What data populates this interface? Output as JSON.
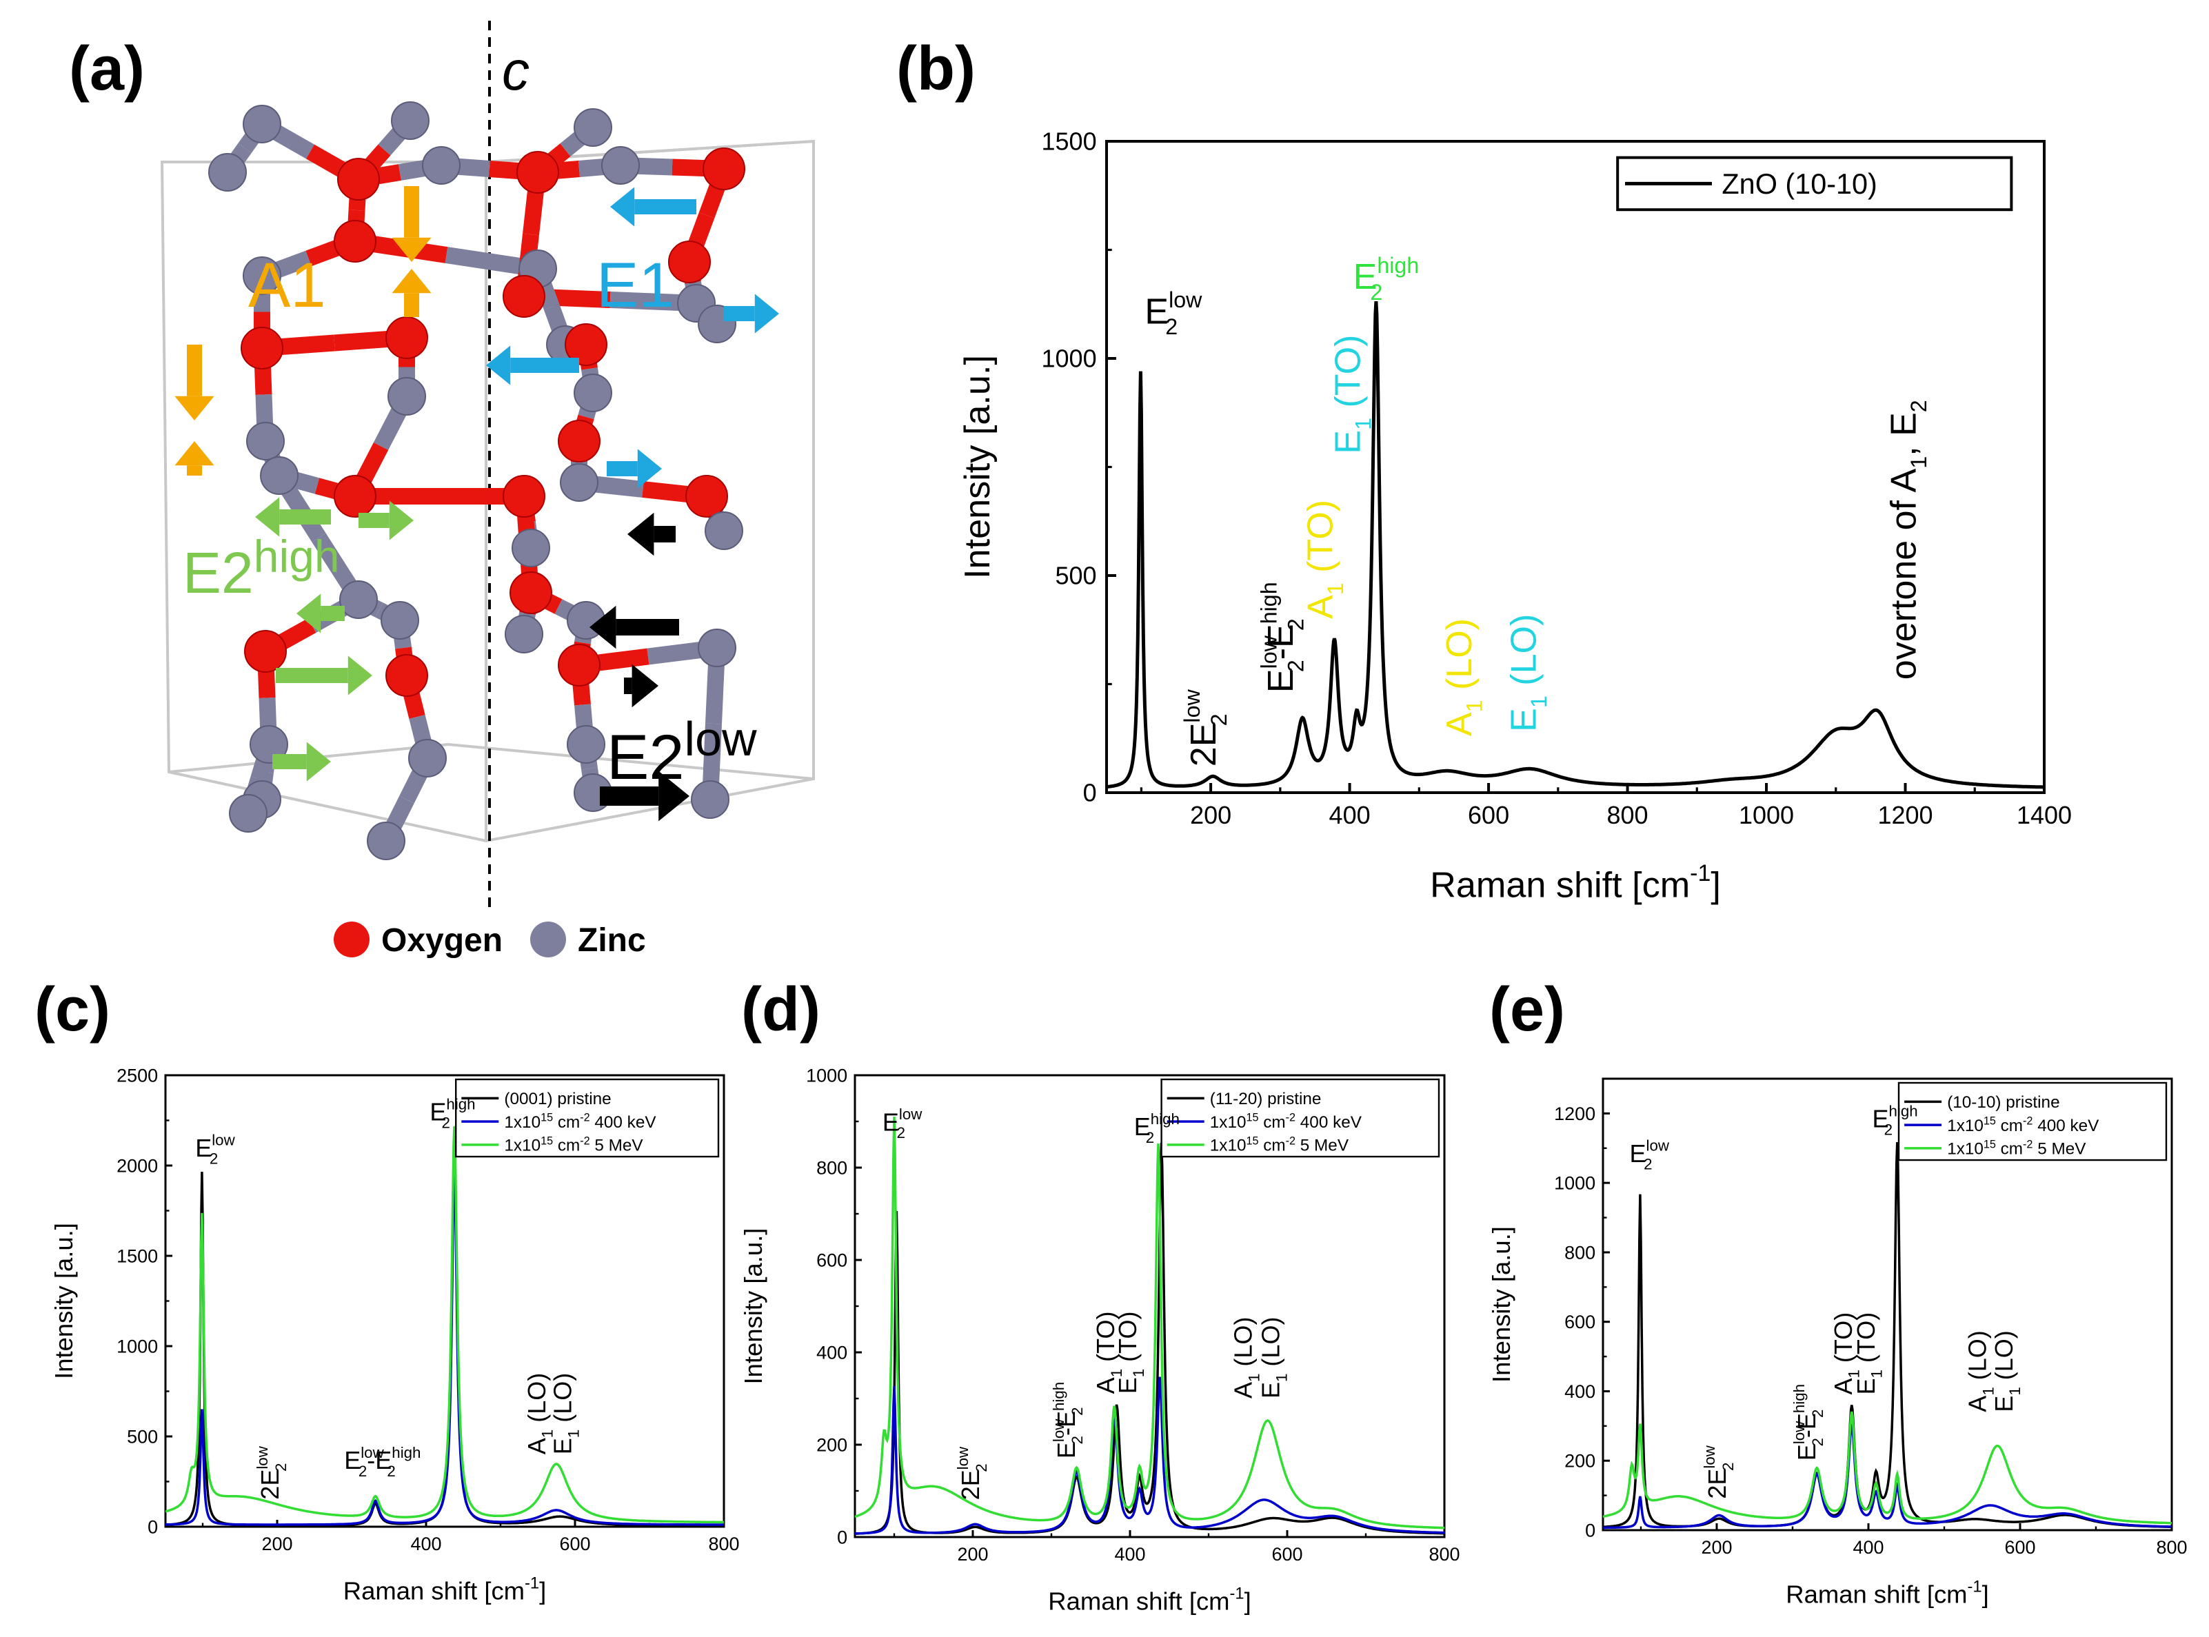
{
  "panel_labels": {
    "a": "(a)",
    "b": "(b)",
    "c": "(c)",
    "d": "(d)",
    "e": "(e)"
  },
  "structure": {
    "axis_label": "c",
    "modes": {
      "a1": "A1",
      "e1": "E1",
      "e2h_base": "E2",
      "e2h_sup": "high",
      "e2l_base": "E2",
      "e2l_sup": "low"
    },
    "legend": {
      "oxygen": "Oxygen",
      "zinc": "Zinc"
    },
    "colors": {
      "oxygen": "#e8150f",
      "zinc": "#7d7f9c",
      "a1": "#f5a800",
      "e1": "#1fa8e0",
      "e2h": "#7ec850",
      "e2l": "#000000"
    }
  },
  "chart_data": [
    {
      "id": "b",
      "type": "line",
      "title": "",
      "xlabel": "Raman shift [cm",
      "xlabel_sup": "-1",
      "xlabel_end": "]",
      "ylabel": "Intensity [a.u.]",
      "xlim": [
        50,
        1400
      ],
      "ylim": [
        0,
        1500
      ],
      "xticks": [
        200,
        400,
        600,
        800,
        1000,
        1200,
        1400
      ],
      "yticks": [
        0,
        500,
        1000,
        1500
      ],
      "legend": [
        "ZnO (10-10)"
      ],
      "series": [
        {
          "name": "ZnO (10-10)",
          "color": "#000000",
          "peaks": [
            [
              99,
              960,
              3
            ],
            [
              203,
              25,
              14
            ],
            [
              332,
              150,
              11
            ],
            [
              378,
              320,
              7
            ],
            [
              410,
              110,
              6
            ],
            [
              438,
              1105,
              6
            ],
            [
              540,
              30,
              45
            ],
            [
              660,
              40,
              50
            ],
            [
              950,
              10,
              60
            ],
            [
              1100,
              110,
              45
            ],
            [
              1160,
              140,
              28
            ]
          ],
          "baseline": 8
        }
      ],
      "annotations": [
        {
          "id": "E2low",
          "base": "E",
          "sub": "2",
          "sup": "low",
          "x": 105,
          "y": 1080,
          "rot": 0,
          "color": "#000000"
        },
        {
          "id": "2E2low",
          "base": "2E",
          "sub": "2",
          "sup": "low",
          "x": 207,
          "y": 60,
          "rot": -90,
          "color": "#000000"
        },
        {
          "id": "diff",
          "base": "E",
          "sub": "2",
          "sup": "low",
          "extra": "-E",
          "extra_sub": "2",
          "extra_sup": "high",
          "x": 318,
          "y": 230,
          "rot": -90,
          "color": "#000000"
        },
        {
          "id": "A1TO",
          "base": "A",
          "sub": "1",
          "text": " (TO)",
          "x": 375,
          "y": 400,
          "rot": -90,
          "color": "#f2e600"
        },
        {
          "id": "E1TO",
          "base": "E",
          "sub": "1",
          "text": " (TO)",
          "x": 415,
          "y": 780,
          "rot": -90,
          "color": "#22d3e0"
        },
        {
          "id": "E2high",
          "base": "E",
          "sub": "2",
          "sup": "high",
          "x": 405,
          "y": 1160,
          "rot": 0,
          "color": "#2fe33d"
        },
        {
          "id": "A1LO",
          "base": "A",
          "sub": "1",
          "text": " (LO)",
          "x": 575,
          "y": 130,
          "rot": -90,
          "color": "#f2e600"
        },
        {
          "id": "E1LO",
          "base": "E",
          "sub": "1",
          "text": " (LO)",
          "x": 668,
          "y": 140,
          "rot": -90,
          "color": "#22d3e0"
        },
        {
          "id": "overtone",
          "text": "overtone of A",
          "sub": "1",
          "extra": ", E",
          "extra_sub": "2",
          "x": 1215,
          "y": 260,
          "rot": -90,
          "color": "#000000"
        }
      ]
    },
    {
      "id": "c",
      "type": "line",
      "xlabel": "Raman shift [cm",
      "xlabel_sup": "-1",
      "xlabel_end": "]",
      "ylabel": "Intensity [a.u.]",
      "xlim": [
        50,
        800
      ],
      "ylim": [
        0,
        2500
      ],
      "xticks": [
        200,
        400,
        600,
        800
      ],
      "yticks": [
        0,
        500,
        1000,
        1500,
        2000,
        2500
      ],
      "legend_entries": [
        {
          "text": "(0001) pristine",
          "color": "#000000"
        },
        {
          "text": "1x10",
          "sup": "15",
          "text2": " cm",
          "sup2": "-2",
          "text3": " 400 keV",
          "color": "#0000cc"
        },
        {
          "text": "1x10",
          "sup": "15",
          "text2": " cm",
          "sup2": "-2",
          "text3": " 5 MeV",
          "color": "#33dd33"
        }
      ],
      "series": [
        {
          "name": "(0001) pristine",
          "color": "#000000",
          "peaks": [
            [
              99,
              1960,
              2.5
            ],
            [
              332,
              120,
              6
            ],
            [
              438,
              2150,
              4
            ],
            [
              580,
              50,
              30
            ]
          ],
          "baseline": 5
        },
        {
          "name": "400 keV",
          "color": "#0000cc",
          "peaks": [
            [
              99,
              640,
              2.5
            ],
            [
              332,
              130,
              6
            ],
            [
              438,
              2000,
              4
            ],
            [
              575,
              80,
              25
            ]
          ],
          "baseline": 10
        },
        {
          "name": "5 MeV",
          "color": "#33dd33",
          "peaks": [
            [
              85,
              150,
              5
            ],
            [
              99,
              1600,
              3
            ],
            [
              150,
              140,
              80
            ],
            [
              332,
              120,
              7
            ],
            [
              438,
              2180,
              4.5
            ],
            [
              575,
              320,
              20
            ]
          ],
          "baseline": 20
        }
      ],
      "annotations": [
        {
          "base": "E",
          "sub": "2",
          "sup": "low",
          "x": 90,
          "y": 2050,
          "rot": 0,
          "color": "#000000"
        },
        {
          "base": "2E",
          "sub": "2",
          "sup": "low",
          "x": 202,
          "y": 150,
          "rot": -90,
          "color": "#000000"
        },
        {
          "base": "E",
          "sub": "2",
          "sup": "low",
          "extra": "-E",
          "extra_sub": "2",
          "extra_sup": "high",
          "x": 290,
          "y": 320,
          "rot": 0,
          "color": "#000000"
        },
        {
          "base": "E",
          "sub": "2",
          "sup": "high",
          "x": 405,
          "y": 2250,
          "rot": 0,
          "color": "#000000"
        },
        {
          "base": "A",
          "sub": "1",
          "text": " (LO)",
          "x": 560,
          "y": 400,
          "rot": -90,
          "color": "#000000"
        },
        {
          "base": "E",
          "sub": "1",
          "text": " (LO)",
          "x": 595,
          "y": 400,
          "rot": -90,
          "color": "#000000"
        }
      ]
    },
    {
      "id": "d",
      "type": "line",
      "xlabel": "Raman shift [cm",
      "xlabel_sup": "-1",
      "xlabel_end": "]",
      "ylabel": "Intensity [a.u.]",
      "xlim": [
        50,
        800
      ],
      "ylim": [
        0,
        1000
      ],
      "xticks": [
        200,
        400,
        600,
        800
      ],
      "yticks": [
        0,
        200,
        400,
        600,
        800,
        1000
      ],
      "legend_entries": [
        {
          "text": "(11-20) pristine",
          "color": "#000000"
        },
        {
          "text": "1x10",
          "sup": "15",
          "text2": " cm",
          "sup2": "-2",
          "text3": " 400 keV",
          "color": "#0000cc"
        },
        {
          "text": "1x10",
          "sup": "15",
          "text2": " cm",
          "sup2": "-2",
          "text3": " 5 MeV",
          "color": "#33dd33"
        }
      ],
      "series": [
        {
          "name": "(11-20) pristine",
          "color": "#000000",
          "peaks": [
            [
              103,
              700,
              2.5
            ],
            [
              203,
              15,
              15
            ],
            [
              332,
              120,
              8
            ],
            [
              383,
              270,
              5
            ],
            [
              412,
              100,
              5
            ],
            [
              440,
              840,
              4
            ],
            [
              580,
              30,
              40
            ],
            [
              660,
              30,
              35
            ]
          ],
          "baseline": 5
        },
        {
          "name": "400 keV",
          "color": "#0000cc",
          "peaks": [
            [
              100,
              320,
              2.5
            ],
            [
              203,
              20,
              15
            ],
            [
              332,
              130,
              8
            ],
            [
              380,
              250,
              5
            ],
            [
              412,
              80,
              5
            ],
            [
              438,
              330,
              4
            ],
            [
              570,
              70,
              35
            ],
            [
              660,
              30,
              35
            ]
          ],
          "baseline": 6
        },
        {
          "name": "5 MeV",
          "color": "#33dd33",
          "peaks": [
            [
              87,
              130,
              4
            ],
            [
              100,
              830,
              3
            ],
            [
              150,
              90,
              60
            ],
            [
              332,
              120,
              8
            ],
            [
              380,
              250,
              5
            ],
            [
              412,
              100,
              5
            ],
            [
              436,
              820,
              4
            ],
            [
              575,
              230,
              22
            ],
            [
              660,
              30,
              35
            ]
          ],
          "baseline": 15
        }
      ],
      "annotations": [
        {
          "base": "E",
          "sub": "2",
          "sup": "low",
          "x": 85,
          "y": 880,
          "rot": 0,
          "color": "#000000"
        },
        {
          "base": "2E",
          "sub": "2",
          "sup": "low",
          "x": 208,
          "y": 80,
          "rot": -90,
          "color": "#000000"
        },
        {
          "base": "E",
          "sub": "2",
          "sup": "low",
          "extra": "-E",
          "extra_sub": "2",
          "extra_sup": "high",
          "x": 330,
          "y": 170,
          "rot": -90,
          "color": "#000000"
        },
        {
          "base": "A",
          "sub": "1",
          "text": " (TO)",
          "x": 380,
          "y": 310,
          "rot": -90,
          "color": "#000000"
        },
        {
          "base": "E",
          "sub": "1",
          "text": " (TO)",
          "x": 408,
          "y": 310,
          "rot": -90,
          "color": "#000000"
        },
        {
          "base": "E",
          "sub": "2",
          "sup": "high",
          "x": 405,
          "y": 870,
          "rot": 0,
          "color": "#000000"
        },
        {
          "base": "A",
          "sub": "1",
          "text": " (LO)",
          "x": 555,
          "y": 300,
          "rot": -90,
          "color": "#000000"
        },
        {
          "base": "E",
          "sub": "1",
          "text": " (LO)",
          "x": 590,
          "y": 300,
          "rot": -90,
          "color": "#000000"
        }
      ]
    },
    {
      "id": "e",
      "type": "line",
      "xlabel": "Raman shift [cm",
      "xlabel_sup": "-1",
      "xlabel_end": "]",
      "ylabel": "Intensity [a.u.]",
      "xlim": [
        50,
        800
      ],
      "ylim": [
        0,
        1300
      ],
      "xticks": [
        200,
        400,
        600,
        800
      ],
      "yticks": [
        0,
        200,
        400,
        600,
        800,
        1000,
        1200
      ],
      "legend_entries": [
        {
          "text": "(10-10) pristine",
          "color": "#000000"
        },
        {
          "text": "1x10",
          "sup": "15",
          "text2": " cm",
          "sup2": "-2",
          "text3": " 400 keV",
          "color": "#0000cc"
        },
        {
          "text": "1x10",
          "sup": "15",
          "text2": " cm",
          "sup2": "-2",
          "text3": " 5 MeV",
          "color": "#33dd33"
        }
      ],
      "series": [
        {
          "name": "(10-10) pristine",
          "color": "#000000",
          "peaks": [
            [
              99,
              960,
              2.5
            ],
            [
              203,
              25,
              14
            ],
            [
              332,
              150,
              8
            ],
            [
              378,
              340,
              5
            ],
            [
              410,
              130,
              5
            ],
            [
              438,
              1100,
              4
            ],
            [
              540,
              20,
              40
            ],
            [
              660,
              35,
              40
            ]
          ],
          "baseline": 6
        },
        {
          "name": "400 keV",
          "color": "#0000cc",
          "peaks": [
            [
              99,
              90,
              2.5
            ],
            [
              203,
              35,
              14
            ],
            [
              332,
              150,
              8
            ],
            [
              378,
              290,
              5
            ],
            [
              410,
              90,
              5
            ],
            [
              438,
              110,
              4
            ],
            [
              560,
              60,
              35
            ],
            [
              660,
              35,
              40
            ]
          ],
          "baseline": 6
        },
        {
          "name": "5 MeV",
          "color": "#33dd33",
          "peaks": [
            [
              88,
              120,
              4
            ],
            [
              99,
              230,
              3
            ],
            [
              150,
              80,
              60
            ],
            [
              332,
              150,
              8
            ],
            [
              378,
              310,
              5
            ],
            [
              410,
              100,
              5
            ],
            [
              438,
              130,
              4
            ],
            [
              570,
              220,
              22
            ],
            [
              660,
              35,
              40
            ]
          ],
          "baseline": 15
        }
      ],
      "annotations": [
        {
          "base": "E",
          "sub": "2",
          "sup": "low",
          "x": 85,
          "y": 1060,
          "rot": 0,
          "color": "#000000"
        },
        {
          "base": "2E",
          "sub": "2",
          "sup": "low",
          "x": 212,
          "y": 90,
          "rot": -90,
          "color": "#000000"
        },
        {
          "base": "E",
          "sub": "2",
          "sup": "low",
          "extra": "-E",
          "extra_sub": "2",
          "extra_sup": "high",
          "x": 330,
          "y": 200,
          "rot": -90,
          "color": "#000000"
        },
        {
          "base": "A",
          "sub": "1",
          "text": " (TO)",
          "x": 378,
          "y": 390,
          "rot": -90,
          "color": "#000000"
        },
        {
          "base": "E",
          "sub": "1",
          "text": " (TO)",
          "x": 408,
          "y": 390,
          "rot": -90,
          "color": "#000000"
        },
        {
          "base": "E",
          "sub": "2",
          "sup": "high",
          "x": 405,
          "y": 1160,
          "rot": 0,
          "color": "#000000"
        },
        {
          "base": "A",
          "sub": "1",
          "text": " (LO)",
          "x": 555,
          "y": 340,
          "rot": -90,
          "color": "#000000"
        },
        {
          "base": "E",
          "sub": "1",
          "text": " (LO)",
          "x": 590,
          "y": 340,
          "rot": -90,
          "color": "#000000"
        }
      ]
    }
  ]
}
